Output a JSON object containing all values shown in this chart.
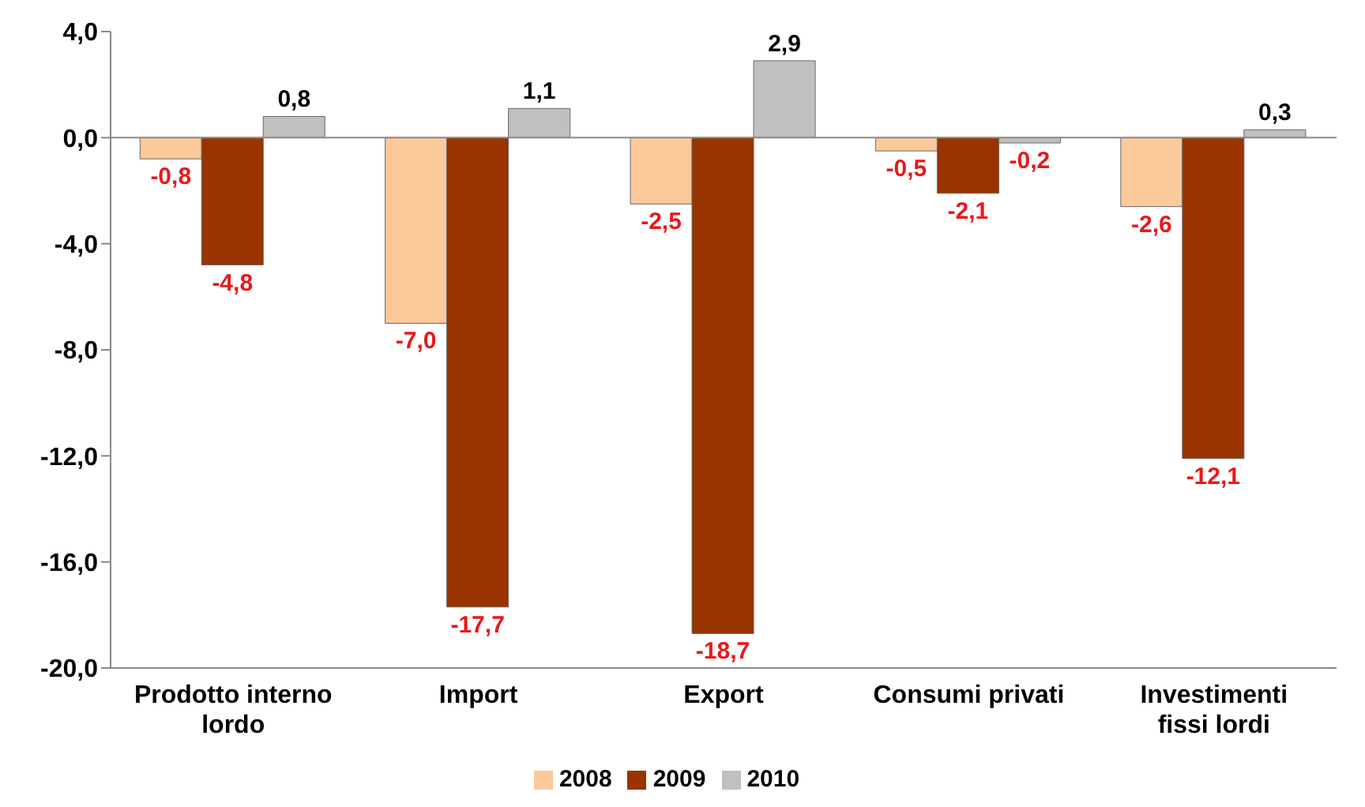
{
  "chart_data": {
    "type": "bar",
    "categories": [
      "Prodotto interno lordo",
      "Import",
      "Export",
      "Consumi privati",
      "Investimenti fissi lordi"
    ],
    "series": [
      {
        "name": "2008",
        "color": "#fcc99b",
        "values": [
          -0.8,
          -7.0,
          -2.5,
          -0.5,
          -2.6
        ],
        "value_labels": [
          "-0,8",
          "-7,0",
          "-2,5",
          "-0,5",
          "-2,6"
        ]
      },
      {
        "name": "2009",
        "color": "#993300",
        "values": [
          -4.8,
          -17.7,
          -18.7,
          -2.1,
          -12.1
        ],
        "value_labels": [
          "-4,8",
          "-17,7",
          "-18,7",
          "-2,1",
          "-12,1"
        ]
      },
      {
        "name": "2010",
        "color": "#c0c0c0",
        "values": [
          0.8,
          1.1,
          2.9,
          -0.2,
          0.3
        ],
        "value_labels": [
          "0,8",
          "1,1",
          "2,9",
          "-0,2",
          "0,3"
        ]
      }
    ],
    "ylim": [
      -20,
      4
    ],
    "yticks": [
      {
        "value": -20,
        "label": "-20,0"
      },
      {
        "value": -16,
        "label": "-16,0"
      },
      {
        "value": -12,
        "label": "-12,0"
      },
      {
        "value": -8,
        "label": "-8,0"
      },
      {
        "value": -4,
        "label": "-4,0"
      },
      {
        "value": 0,
        "label": "0,0"
      },
      {
        "value": 4,
        "label": "4,0"
      }
    ],
    "ref_lines": [
      {
        "axis": "y",
        "value": 0,
        "color": "#888888"
      }
    ],
    "legend": "bottom"
  }
}
